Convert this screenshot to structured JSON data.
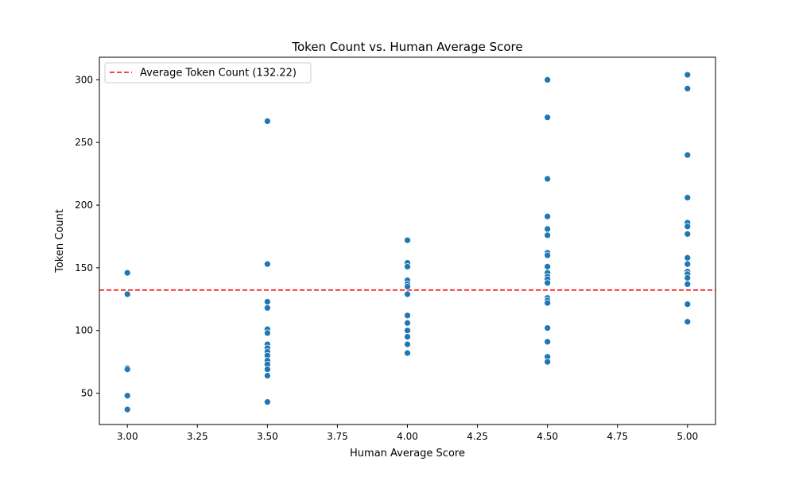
{
  "chart_data": {
    "type": "scatter",
    "title": "Token Count vs. Human Average Score",
    "xlabel": "Human Average Score",
    "ylabel": "Token Count",
    "xlim": [
      2.9,
      5.1
    ],
    "ylim": [
      25,
      318
    ],
    "xticks": [
      "3.00",
      "3.25",
      "3.50",
      "3.75",
      "4.00",
      "4.25",
      "4.50",
      "4.75",
      "5.00"
    ],
    "xtick_values": [
      3.0,
      3.25,
      3.5,
      3.75,
      4.0,
      4.25,
      4.5,
      4.75,
      5.0
    ],
    "yticks": [
      "50",
      "100",
      "150",
      "200",
      "250",
      "300"
    ],
    "ytick_values": [
      50,
      100,
      150,
      200,
      250,
      300
    ],
    "grid": false,
    "legend_position": "top-left",
    "point_color": "#1f77b4",
    "reference_line": {
      "label": "Average Token Count (132.22)",
      "y": 132.22,
      "color": "#ff0000",
      "style": "dashed"
    },
    "points": [
      {
        "x": 3.0,
        "y": 146
      },
      {
        "x": 3.0,
        "y": 129
      },
      {
        "x": 3.0,
        "y": 70
      },
      {
        "x": 3.0,
        "y": 69
      },
      {
        "x": 3.0,
        "y": 48
      },
      {
        "x": 3.0,
        "y": 37
      },
      {
        "x": 3.5,
        "y": 267
      },
      {
        "x": 3.5,
        "y": 153
      },
      {
        "x": 3.5,
        "y": 123
      },
      {
        "x": 3.5,
        "y": 118
      },
      {
        "x": 3.5,
        "y": 101
      },
      {
        "x": 3.5,
        "y": 98
      },
      {
        "x": 3.5,
        "y": 89
      },
      {
        "x": 3.5,
        "y": 86
      },
      {
        "x": 3.5,
        "y": 83
      },
      {
        "x": 3.5,
        "y": 80
      },
      {
        "x": 3.5,
        "y": 76
      },
      {
        "x": 3.5,
        "y": 73
      },
      {
        "x": 3.5,
        "y": 69
      },
      {
        "x": 3.5,
        "y": 64
      },
      {
        "x": 3.5,
        "y": 43
      },
      {
        "x": 4.0,
        "y": 172
      },
      {
        "x": 4.0,
        "y": 154
      },
      {
        "x": 4.0,
        "y": 151
      },
      {
        "x": 4.0,
        "y": 140
      },
      {
        "x": 4.0,
        "y": 137
      },
      {
        "x": 4.0,
        "y": 135
      },
      {
        "x": 4.0,
        "y": 129
      },
      {
        "x": 4.0,
        "y": 112
      },
      {
        "x": 4.0,
        "y": 106
      },
      {
        "x": 4.0,
        "y": 100
      },
      {
        "x": 4.0,
        "y": 95
      },
      {
        "x": 4.0,
        "y": 89
      },
      {
        "x": 4.0,
        "y": 82
      },
      {
        "x": 4.5,
        "y": 300
      },
      {
        "x": 4.5,
        "y": 270
      },
      {
        "x": 4.5,
        "y": 221
      },
      {
        "x": 4.5,
        "y": 191
      },
      {
        "x": 4.5,
        "y": 181
      },
      {
        "x": 4.5,
        "y": 176
      },
      {
        "x": 4.5,
        "y": 162
      },
      {
        "x": 4.5,
        "y": 160
      },
      {
        "x": 4.5,
        "y": 151
      },
      {
        "x": 4.5,
        "y": 146
      },
      {
        "x": 4.5,
        "y": 143
      },
      {
        "x": 4.5,
        "y": 141
      },
      {
        "x": 4.5,
        "y": 138
      },
      {
        "x": 4.5,
        "y": 126
      },
      {
        "x": 4.5,
        "y": 124
      },
      {
        "x": 4.5,
        "y": 122
      },
      {
        "x": 4.5,
        "y": 102
      },
      {
        "x": 4.5,
        "y": 91
      },
      {
        "x": 4.5,
        "y": 79
      },
      {
        "x": 4.5,
        "y": 75
      },
      {
        "x": 5.0,
        "y": 304
      },
      {
        "x": 5.0,
        "y": 293
      },
      {
        "x": 5.0,
        "y": 240
      },
      {
        "x": 5.0,
        "y": 206
      },
      {
        "x": 5.0,
        "y": 186
      },
      {
        "x": 5.0,
        "y": 183
      },
      {
        "x": 5.0,
        "y": 177
      },
      {
        "x": 5.0,
        "y": 158
      },
      {
        "x": 5.0,
        "y": 153
      },
      {
        "x": 5.0,
        "y": 147
      },
      {
        "x": 5.0,
        "y": 145
      },
      {
        "x": 5.0,
        "y": 142
      },
      {
        "x": 5.0,
        "y": 137
      },
      {
        "x": 5.0,
        "y": 121
      },
      {
        "x": 5.0,
        "y": 107
      }
    ]
  }
}
